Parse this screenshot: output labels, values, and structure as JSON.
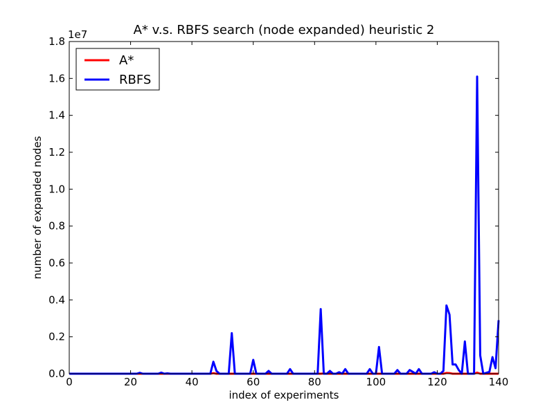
{
  "chart_data": {
    "type": "line",
    "title": "A* v.s. RBFS search (node expanded) heuristic 2",
    "xlabel": "index of experiments",
    "ylabel": "number of expanded nodes",
    "y_offset_label": "1e7",
    "xlim": [
      0,
      140
    ],
    "ylim": [
      0,
      18000000
    ],
    "x_ticks": [
      0,
      20,
      40,
      60,
      80,
      100,
      120,
      140
    ],
    "x_tick_labels": [
      "0",
      "20",
      "40",
      "60",
      "80",
      "100",
      "120",
      "140"
    ],
    "y_ticks": [
      0,
      2000000,
      4000000,
      6000000,
      8000000,
      10000000,
      12000000,
      14000000,
      16000000,
      18000000
    ],
    "y_tick_labels": [
      "0.0",
      "0.2",
      "0.4",
      "0.6",
      "0.8",
      "1.0",
      "1.2",
      "1.4",
      "1.6",
      "1.8"
    ],
    "grid": false,
    "legend_position": "upper-left",
    "series": [
      {
        "name": "A*",
        "color": "#ff0000",
        "points": [
          [
            0,
            0
          ],
          [
            46,
            0
          ],
          [
            47,
            30000
          ],
          [
            48,
            0
          ],
          [
            82,
            0
          ],
          [
            83,
            15000
          ],
          [
            84,
            0
          ],
          [
            122,
            0
          ],
          [
            123,
            40000
          ],
          [
            124,
            35000
          ],
          [
            125,
            0
          ],
          [
            132,
            0
          ],
          [
            133,
            60000
          ],
          [
            134,
            0
          ],
          [
            140,
            0
          ]
        ]
      },
      {
        "name": "RBFS",
        "color": "#0000ff",
        "points": [
          [
            0,
            0
          ],
          [
            22,
            0
          ],
          [
            23,
            50000
          ],
          [
            24,
            0
          ],
          [
            29,
            0
          ],
          [
            30,
            60000
          ],
          [
            31,
            0
          ],
          [
            32,
            20000
          ],
          [
            33,
            0
          ],
          [
            46,
            0
          ],
          [
            47,
            650000
          ],
          [
            48,
            150000
          ],
          [
            49,
            0
          ],
          [
            52,
            0
          ],
          [
            53,
            2200000
          ],
          [
            54,
            0
          ],
          [
            59,
            0
          ],
          [
            60,
            750000
          ],
          [
            61,
            0
          ],
          [
            64,
            0
          ],
          [
            65,
            150000
          ],
          [
            66,
            0
          ],
          [
            71,
            0
          ],
          [
            72,
            250000
          ],
          [
            73,
            0
          ],
          [
            81,
            0
          ],
          [
            82,
            3500000
          ],
          [
            83,
            0
          ],
          [
            84,
            0
          ],
          [
            85,
            150000
          ],
          [
            86,
            0
          ],
          [
            87,
            0
          ],
          [
            88,
            80000
          ],
          [
            89,
            0
          ],
          [
            90,
            250000
          ],
          [
            91,
            0
          ],
          [
            97,
            0
          ],
          [
            98,
            250000
          ],
          [
            99,
            0
          ],
          [
            100,
            0
          ],
          [
            101,
            1450000
          ],
          [
            102,
            0
          ],
          [
            106,
            0
          ],
          [
            107,
            200000
          ],
          [
            108,
            0
          ],
          [
            110,
            0
          ],
          [
            111,
            200000
          ],
          [
            112,
            100000
          ],
          [
            113,
            0
          ],
          [
            114,
            250000
          ],
          [
            115,
            0
          ],
          [
            118,
            0
          ],
          [
            119,
            80000
          ],
          [
            120,
            0
          ],
          [
            121,
            0
          ],
          [
            122,
            150000
          ],
          [
            123,
            3700000
          ],
          [
            124,
            3200000
          ],
          [
            125,
            500000
          ],
          [
            126,
            500000
          ],
          [
            127,
            200000
          ],
          [
            128,
            0
          ],
          [
            129,
            1750000
          ],
          [
            130,
            0
          ],
          [
            131,
            0
          ],
          [
            132,
            0
          ],
          [
            133,
            16100000
          ],
          [
            134,
            1000000
          ],
          [
            135,
            0
          ],
          [
            136,
            50000
          ],
          [
            137,
            100000
          ],
          [
            138,
            900000
          ],
          [
            139,
            300000
          ],
          [
            140,
            2900000
          ]
        ]
      }
    ]
  }
}
